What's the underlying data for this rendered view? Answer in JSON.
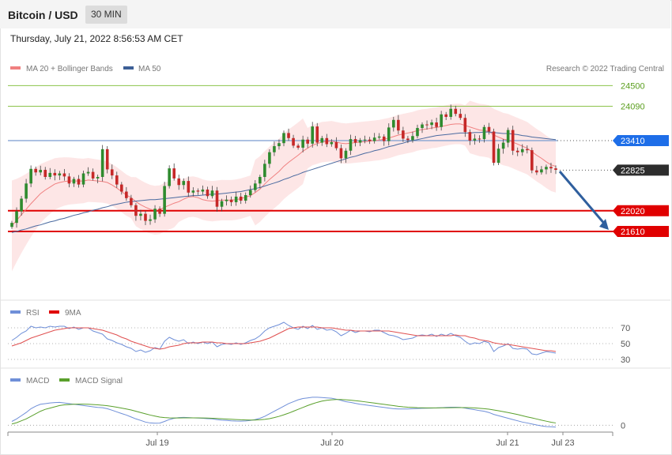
{
  "header": {
    "title": "Bitcoin / USD",
    "timeframe": "30 MIN",
    "datetime": "Thursday, July 21, 2022 8:56:53 AM CET"
  },
  "price_panel": {
    "legend": {
      "ma20": "MA 20 + Bollinger Bands",
      "ma50": "MA 50"
    },
    "credit": "Research © 2022 Trading Central"
  },
  "rsi_panel": {
    "legend": {
      "rsi": "RSI",
      "ma": "9MA"
    }
  },
  "macd_panel": {
    "legend": {
      "macd": "MACD",
      "signal": "MACD Signal"
    }
  },
  "colors": {
    "up": "#2e8b2e",
    "down": "#c62828",
    "ma20": "#f08080",
    "ma50": "#4a6aa0",
    "band": "#fde2e2",
    "resistance": "#8cc34a",
    "pivot": "#1e6ee8",
    "support": "#e00000",
    "last": "#2d2d2d",
    "arrow": "#2f5f9e",
    "rsi": "#6f8fd8",
    "rsi_ma": "#e05050",
    "macd": "#6f8fd8",
    "signal": "#5aa02c"
  },
  "chart_data": [
    {
      "type": "line",
      "name": "price",
      "x": [
        "Jul 19",
        "Jul 20",
        "Jul 21",
        "Jul 23"
      ],
      "ylim": [
        20700,
        24900
      ],
      "levels": [
        {
          "label": "24500",
          "value": 24500,
          "kind": "resistance"
        },
        {
          "label": "24090",
          "value": 24090,
          "kind": "resistance"
        },
        {
          "label": "23410",
          "value": 23410,
          "kind": "pivot"
        },
        {
          "label": "22825",
          "value": 22825,
          "kind": "last"
        },
        {
          "label": "22020",
          "value": 22020,
          "kind": "support"
        },
        {
          "label": "21610",
          "value": 21610,
          "kind": "support"
        }
      ],
      "closes": [
        21780,
        22010,
        22260,
        22560,
        22850,
        22780,
        22830,
        22690,
        22770,
        22720,
        22760,
        22700,
        22560,
        22650,
        22540,
        22760,
        22790,
        22660,
        22690,
        23240,
        22840,
        22720,
        22540,
        22400,
        22270,
        22130,
        21920,
        21960,
        21820,
        21850,
        22060,
        21960,
        22510,
        22860,
        22660,
        22530,
        22610,
        22380,
        22420,
        22400,
        22440,
        22310,
        22420,
        22100,
        22210,
        22240,
        22190,
        22300,
        22220,
        22330,
        22430,
        22560,
        22690,
        22950,
        23180,
        23300,
        23360,
        23560,
        23460,
        23310,
        23270,
        23430,
        23350,
        23690,
        23370,
        23460,
        23340,
        23380,
        23260,
        23060,
        23210,
        23440,
        23370,
        23420,
        23430,
        23400,
        23470,
        23490,
        23400,
        23670,
        23820,
        23610,
        23450,
        23420,
        23500,
        23660,
        23730,
        23720,
        23770,
        23680,
        23930,
        23880,
        24040,
        23940,
        23860,
        23580,
        23410,
        23450,
        23440,
        23680,
        23590,
        22970,
        23250,
        23370,
        23620,
        23210,
        23180,
        23240,
        23220,
        22820,
        22780,
        22840,
        22890,
        22860,
        22830
      ],
      "ma20": [
        21720,
        21830,
        21940,
        22050,
        22160,
        22260,
        22360,
        22430,
        22490,
        22550,
        22580,
        22600,
        22610,
        22610,
        22610,
        22610,
        22630,
        22620,
        22610,
        22600,
        22580,
        22530,
        22470,
        22400,
        22330,
        22280,
        22200,
        22140,
        22090,
        22050,
        22030,
        22040,
        22090,
        22130,
        22170,
        22200,
        22250,
        22290,
        22300,
        22280,
        22240,
        22220,
        22210,
        22220,
        22230,
        22230,
        22230,
        22240,
        22260,
        22290,
        22320,
        22380,
        22450,
        22550,
        22640,
        22720,
        22800,
        22900,
        22980,
        23050,
        23120,
        23200,
        23260,
        23320,
        23350,
        23380,
        23390,
        23400,
        23380,
        23360,
        23350,
        23360,
        23370,
        23380,
        23390,
        23400,
        23410,
        23420,
        23440,
        23460,
        23490,
        23520,
        23540,
        23560,
        23580,
        23610,
        23630,
        23640,
        23660,
        23670,
        23690,
        23710,
        23730,
        23740,
        23740,
        23710,
        23680,
        23650,
        23620,
        23610,
        23590,
        23520,
        23480,
        23440,
        23420,
        23380,
        23340,
        23300,
        23260,
        23190,
        23120,
        23060,
        22990,
        22930,
        22900
      ],
      "ma50": [
        21590,
        21610,
        21640,
        21660,
        21690,
        21720,
        21740,
        21770,
        21800,
        21820,
        21850,
        21870,
        21900,
        21930,
        21950,
        21980,
        22000,
        22030,
        22050,
        22080,
        22100,
        22130,
        22150,
        22170,
        22190,
        22200,
        22210,
        22220,
        22230,
        22240,
        22240,
        22250,
        22260,
        22270,
        22280,
        22290,
        22300,
        22310,
        22320,
        22320,
        22330,
        22340,
        22350,
        22350,
        22360,
        22370,
        22380,
        22390,
        22400,
        22420,
        22440,
        22460,
        22480,
        22510,
        22540,
        22570,
        22600,
        22640,
        22670,
        22710,
        22740,
        22780,
        22810,
        22840,
        22870,
        22900,
        22930,
        22960,
        22990,
        23020,
        23050,
        23080,
        23100,
        23130,
        23160,
        23180,
        23210,
        23230,
        23260,
        23290,
        23310,
        23340,
        23360,
        23390,
        23410,
        23430,
        23450,
        23470,
        23490,
        23510,
        23520,
        23530,
        23540,
        23550,
        23560,
        23560,
        23560,
        23570,
        23570,
        23580,
        23580,
        23570,
        23560,
        23550,
        23550,
        23540,
        23530,
        23510,
        23500,
        23480,
        23470,
        23460,
        23450,
        23440,
        23430
      ]
    },
    {
      "type": "line",
      "name": "rsi",
      "yticks": [
        70,
        50,
        30
      ],
      "ylim": [
        20,
        80
      ],
      "series": [
        {
          "values": [
            54,
            58,
            63,
            66,
            72,
            70,
            71,
            70,
            72,
            71,
            72,
            72,
            69,
            71,
            68,
            70,
            70,
            66,
            64,
            62,
            56,
            54,
            51,
            49,
            46,
            44,
            40,
            42,
            39,
            41,
            45,
            43,
            53,
            58,
            55,
            53,
            55,
            50,
            52,
            50,
            52,
            50,
            52,
            46,
            49,
            50,
            49,
            51,
            49,
            51,
            54,
            56,
            60,
            66,
            70,
            72,
            74,
            77,
            73,
            70,
            68,
            72,
            69,
            73,
            68,
            70,
            67,
            68,
            65,
            60,
            63,
            67,
            64,
            66,
            66,
            65,
            67,
            67,
            64,
            61,
            60,
            58,
            55,
            56,
            57,
            60,
            61,
            60,
            62,
            59,
            62,
            60,
            63,
            60,
            58,
            53,
            49,
            51,
            50,
            53,
            51,
            40,
            45,
            47,
            50,
            44,
            43,
            44,
            43,
            37,
            36,
            38,
            40,
            39,
            38
          ]
        },
        {
          "values": [
            47,
            49,
            51,
            54,
            57,
            59,
            61,
            63,
            65,
            67,
            68,
            69,
            70,
            70,
            70,
            70,
            70,
            69,
            68,
            67,
            65,
            63,
            61,
            58,
            56,
            53,
            51,
            49,
            47,
            45,
            44,
            43,
            44,
            46,
            47,
            48,
            50,
            51,
            51,
            51,
            52,
            52,
            52,
            51,
            51,
            50,
            50,
            50,
            50,
            50,
            51,
            52,
            53,
            55,
            57,
            60,
            63,
            66,
            69,
            70,
            71,
            71,
            71,
            71,
            71,
            70,
            70,
            70,
            69,
            68,
            67,
            67,
            66,
            66,
            66,
            66,
            66,
            66,
            66,
            66,
            65,
            64,
            63,
            62,
            61,
            60,
            60,
            60,
            60,
            60,
            60,
            60,
            60,
            61,
            60,
            60,
            58,
            57,
            55,
            54,
            53,
            51,
            50,
            49,
            49,
            48,
            47,
            46,
            45,
            44,
            43,
            42,
            41,
            41,
            40
          ]
        }
      ]
    },
    {
      "type": "line",
      "name": "macd",
      "yticks": [
        0
      ],
      "ylim": [
        -60,
        300
      ],
      "series": [
        {
          "values": [
            30,
            50,
            75,
            100,
            130,
            150,
            165,
            170,
            175,
            178,
            180,
            175,
            170,
            165,
            160,
            155,
            150,
            145,
            140,
            138,
            130,
            118,
            105,
            92,
            80,
            65,
            50,
            38,
            25,
            18,
            16,
            17,
            30,
            45,
            55,
            60,
            62,
            60,
            58,
            56,
            55,
            52,
            50,
            44,
            40,
            38,
            35,
            33,
            32,
            34,
            38,
            45,
            55,
            70,
            90,
            110,
            130,
            150,
            170,
            185,
            200,
            210,
            215,
            220,
            220,
            218,
            215,
            212,
            205,
            195,
            185,
            180,
            172,
            165,
            160,
            155,
            150,
            145,
            140,
            135,
            130,
            128,
            128,
            128,
            130,
            132,
            133,
            134,
            135,
            136,
            138,
            140,
            142,
            142,
            140,
            135,
            128,
            122,
            115,
            110,
            100,
            85,
            75,
            65,
            55,
            45,
            35,
            25,
            18,
            10,
            2,
            -5,
            -10,
            -12,
            -14
          ]
        },
        {
          "values": [
            10,
            20,
            35,
            50,
            70,
            90,
            110,
            125,
            135,
            145,
            155,
            160,
            163,
            165,
            166,
            166,
            165,
            163,
            160,
            157,
            153,
            148,
            142,
            135,
            128,
            120,
            110,
            100,
            90,
            80,
            72,
            64,
            60,
            58,
            57,
            57,
            58,
            58,
            58,
            58,
            57,
            56,
            55,
            53,
            51,
            49,
            47,
            45,
            43,
            42,
            41,
            41,
            43,
            46,
            52,
            60,
            70,
            82,
            95,
            110,
            125,
            140,
            155,
            168,
            180,
            190,
            196,
            200,
            202,
            202,
            200,
            197,
            193,
            189,
            184,
            179,
            174,
            169,
            164,
            159,
            154,
            149,
            145,
            142,
            140,
            138,
            137,
            136,
            136,
            136,
            137,
            137,
            138,
            139,
            139,
            139,
            138,
            136,
            133,
            130,
            126,
            120,
            114,
            107,
            100,
            92,
            84,
            75,
            66,
            58,
            49,
            40,
            32,
            24,
            18
          ]
        }
      ]
    }
  ]
}
